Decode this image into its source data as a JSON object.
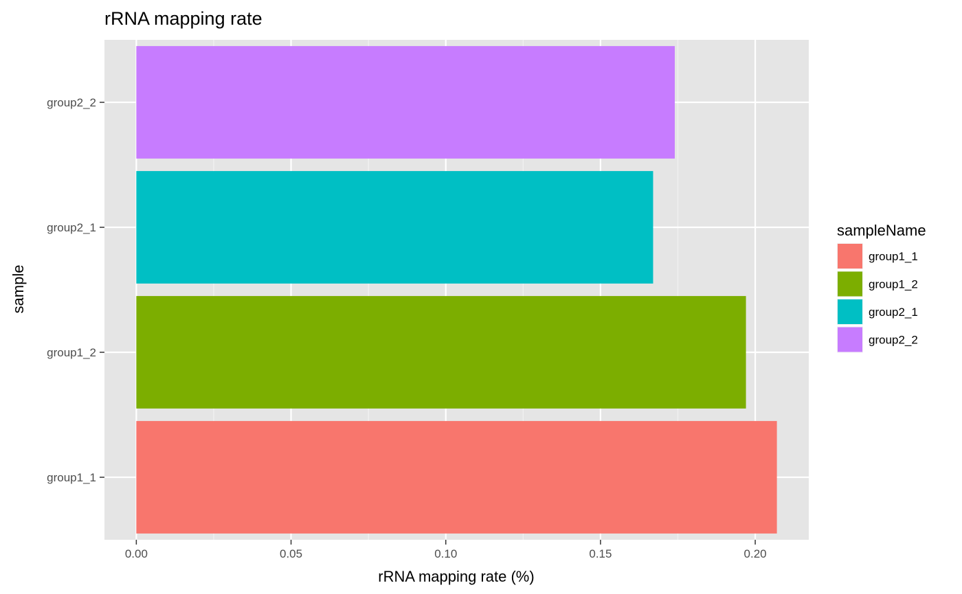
{
  "chart_data": {
    "type": "bar",
    "orientation": "horizontal",
    "title": "rRNA mapping rate",
    "xlabel": "rRNA mapping rate (%)",
    "ylabel": "sample",
    "xlim": [
      -0.0103,
      0.2173
    ],
    "x_ticks": [
      0.0,
      0.05,
      0.1,
      0.15,
      0.2
    ],
    "x_tick_labels": [
      "0.00",
      "0.05",
      "0.10",
      "0.15",
      "0.20"
    ],
    "categories": [
      "group1_1",
      "group1_2",
      "group2_1",
      "group2_2"
    ],
    "values": [
      0.207,
      0.197,
      0.167,
      0.174
    ],
    "colors": [
      "#F8766D",
      "#7CAE00",
      "#00BFC4",
      "#C77CFF"
    ],
    "grid": true,
    "legend": {
      "title": "sampleName",
      "placement": "right",
      "entries": [
        "group1_1",
        "group1_2",
        "group2_1",
        "group2_2"
      ]
    },
    "panel_background": "#E5E5E5"
  }
}
